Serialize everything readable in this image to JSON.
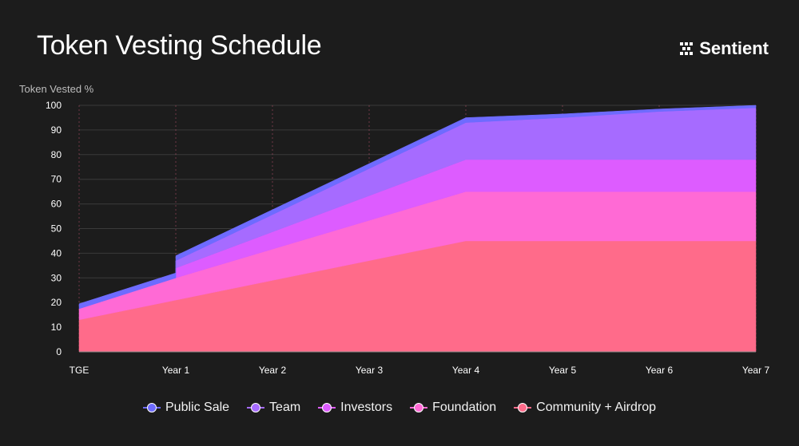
{
  "page": {
    "title": "Token Vesting Schedule",
    "brand": "Sentient"
  },
  "chart_data": {
    "type": "area",
    "stacked": true,
    "title": "Token Vesting Schedule",
    "ylabel": "Token Vested %",
    "xlabel": "",
    "ylim": [
      0,
      100
    ],
    "yticks": [
      0,
      10,
      20,
      30,
      40,
      50,
      60,
      70,
      80,
      90,
      100
    ],
    "grid": true,
    "legend_position": "bottom",
    "categories": [
      "TGE",
      "Year 1",
      "Year 2",
      "Year 3",
      "Year 4",
      "Year 5",
      "Year 6",
      "Year 7"
    ],
    "x": [
      0,
      1,
      1,
      4,
      5,
      6,
      7
    ],
    "series": [
      {
        "name": "Community + Airdrop",
        "color": "#ff6b8a",
        "values": [
          13,
          21,
          21,
          45,
          45,
          45,
          45
        ]
      },
      {
        "name": "Foundation",
        "color": "#ff6ad5",
        "values": [
          4.5,
          9,
          9,
          20,
          20,
          20,
          20
        ]
      },
      {
        "name": "Investors",
        "color": "#dd5cff",
        "values": [
          0,
          0,
          4,
          13,
          13,
          13,
          13
        ]
      },
      {
        "name": "Team",
        "color": "#a66bff",
        "values": [
          0,
          0,
          3,
          15,
          17,
          19.5,
          21
        ]
      },
      {
        "name": "Public Sale",
        "color": "#6e6bff",
        "values": [
          2,
          2,
          2,
          2,
          1.5,
          1,
          1
        ]
      }
    ],
    "legend_order": [
      "Public Sale",
      "Team",
      "Investors",
      "Foundation",
      "Community + Airdrop"
    ]
  }
}
